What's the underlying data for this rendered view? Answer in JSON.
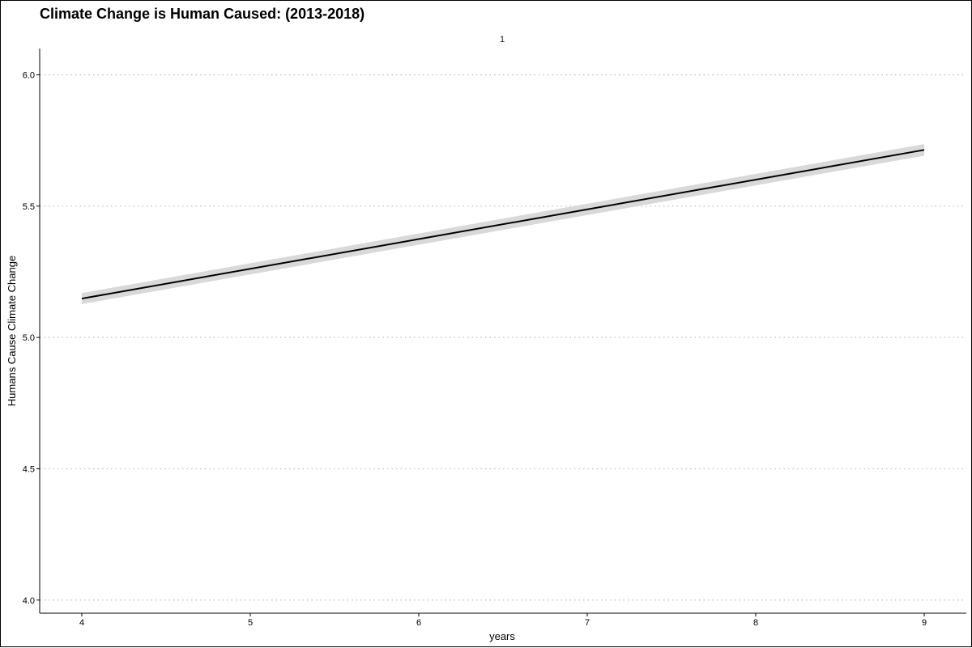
{
  "chart_data": {
    "type": "line",
    "title": "Climate Change is Human Caused: (2013-2018)",
    "facet_label": "1",
    "xlabel": "years",
    "ylabel": "Humans Cause Climate Change",
    "xlim": [
      3.75,
      9.25
    ],
    "ylim": [
      3.95,
      6.1
    ],
    "x_ticks": [
      4,
      5,
      6,
      7,
      8,
      9
    ],
    "y_ticks": [
      4.0,
      4.5,
      5.0,
      5.5,
      6.0
    ],
    "y_tick_labels": [
      "4.0",
      "4.5",
      "5.0",
      "5.5",
      "6.0"
    ],
    "grid": "horizontal-dotted",
    "series": [
      {
        "x": [
          4,
          9
        ],
        "y": [
          5.148,
          5.714
        ],
        "ci_lower": [
          5.127,
          5.692
        ],
        "ci_upper": [
          5.169,
          5.736
        ],
        "color": "#000000",
        "ribbon_color": "#d9d9d9"
      }
    ]
  }
}
